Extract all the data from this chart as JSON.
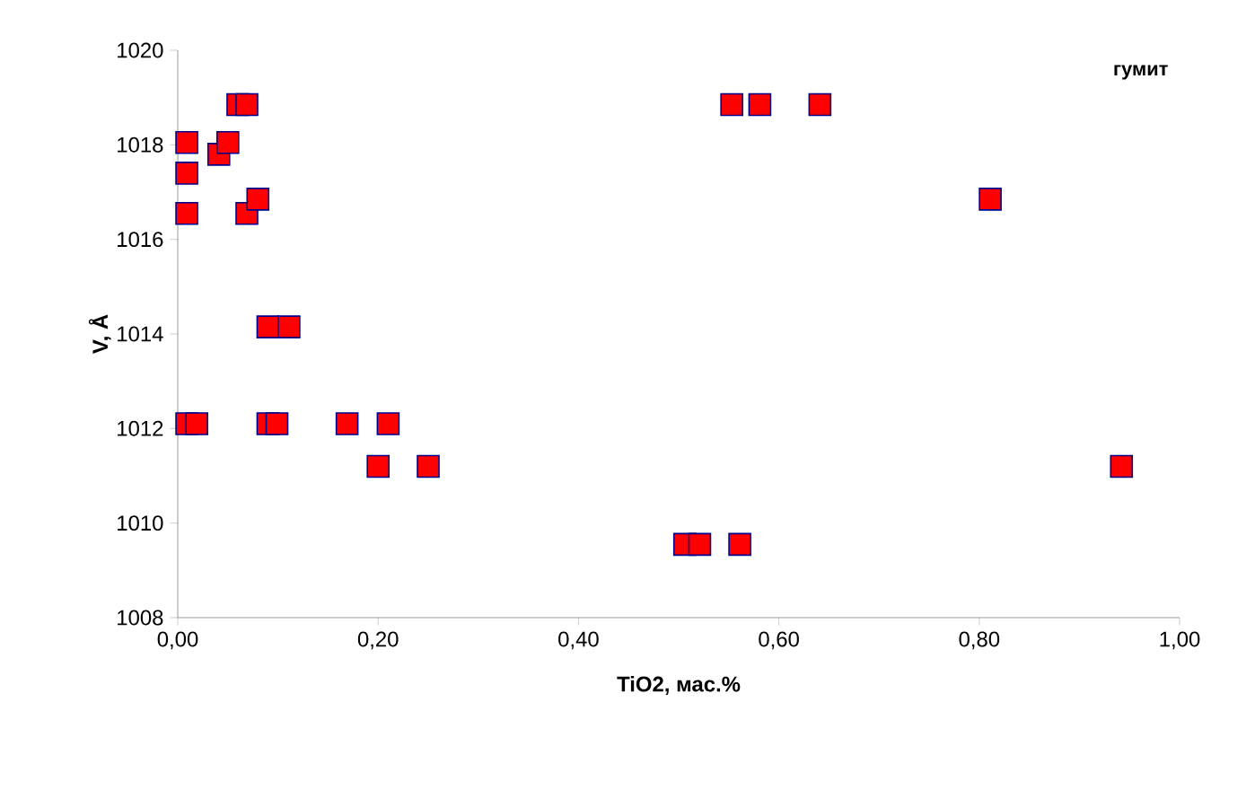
{
  "chart_data": {
    "type": "scatter",
    "xlabel": "TiO2, мас.%",
    "ylabel": "V, Å",
    "annotations": [
      "гумит"
    ],
    "marker": "square",
    "color": "#ff0000",
    "x": [
      0.009,
      0.009,
      0.009,
      0.041,
      0.05,
      0.06,
      0.069,
      0.069,
      0.08,
      0.09,
      0.111,
      0.009,
      0.019,
      0.09,
      0.099,
      0.169,
      0.21,
      0.2,
      0.25,
      0.553,
      0.581,
      0.641,
      0.811,
      0.942,
      0.506,
      0.521,
      0.561
    ],
    "values": [
      1018.05,
      1017.4,
      1016.55,
      1017.8,
      1018.05,
      1018.85,
      1018.85,
      1016.55,
      1016.85,
      1014.15,
      1014.15,
      1012.1,
      1012.1,
      1012.1,
      1012.1,
      1012.1,
      1012.1,
      1011.2,
      1011.2,
      1018.85,
      1018.85,
      1018.85,
      1016.85,
      1011.2,
      1009.55,
      1009.55,
      1009.55
    ],
    "xlim": [
      0,
      1
    ],
    "ylim": [
      1008,
      1020
    ],
    "xticks": [
      {
        "value": 0,
        "label": "0,00"
      },
      {
        "value": 0.2,
        "label": "0,20"
      },
      {
        "value": 0.4,
        "label": "0,40"
      },
      {
        "value": 0.6,
        "label": "0,60"
      },
      {
        "value": 0.8,
        "label": "0,80"
      },
      {
        "value": 1,
        "label": "1,00"
      }
    ],
    "yticks": [
      1008,
      1010,
      1012,
      1014,
      1016,
      1018,
      1020
    ]
  }
}
